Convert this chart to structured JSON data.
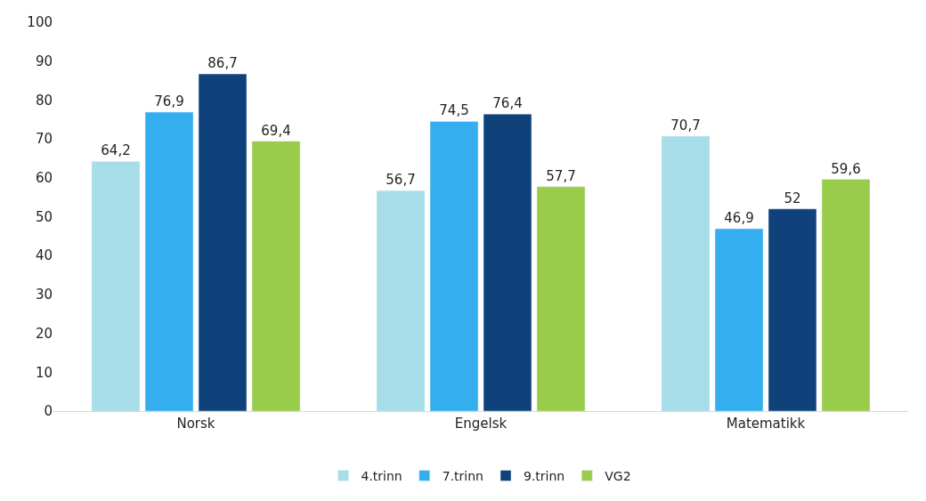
{
  "chart_data": {
    "type": "bar",
    "categories": [
      "Norsk",
      "Engelsk",
      "Matematikk"
    ],
    "series": [
      {
        "name": "4.trinn",
        "color": "#a6dde9",
        "values": [
          64.2,
          56.7,
          70.7
        ],
        "value_labels": [
          "64,2",
          "56,7",
          "70,7"
        ]
      },
      {
        "name": "7.trinn",
        "color": "#35aef0",
        "values": [
          76.9,
          74.5,
          46.9
        ],
        "value_labels": [
          "76,9",
          "74,5",
          "46,9"
        ]
      },
      {
        "name": "9.trinn",
        "color": "#0f427a",
        "values": [
          86.7,
          76.4,
          52
        ],
        "value_labels": [
          "86,7",
          "76,4",
          "52"
        ]
      },
      {
        "name": "VG2",
        "color": "#99cc4b",
        "values": [
          69.4,
          57.7,
          59.6
        ],
        "value_labels": [
          "69,4",
          "57,7",
          "59,6"
        ]
      }
    ],
    "ylim": [
      0,
      100
    ],
    "yticks": [
      0,
      10,
      20,
      30,
      40,
      50,
      60,
      70,
      80,
      90,
      100
    ],
    "grid": false,
    "legend": "bottom"
  }
}
